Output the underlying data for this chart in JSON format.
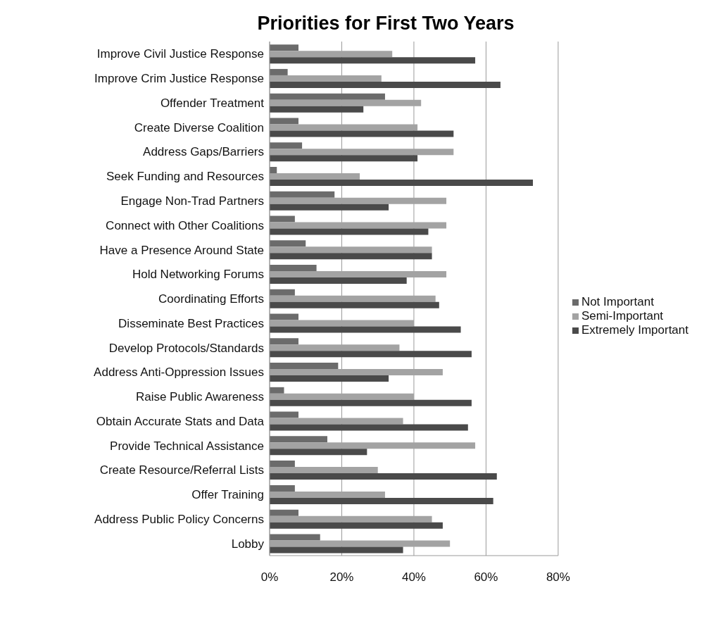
{
  "chart_data": {
    "type": "bar",
    "orientation": "horizontal",
    "title": "Priorities for First Two Years",
    "categories": [
      "Improve Civil Justice Response",
      "Improve Crim Justice Response",
      "Offender Treatment",
      "Create Diverse Coalition",
      "Address Gaps/Barriers",
      "Seek Funding and Resources",
      "Engage Non-Trad Partners",
      "Connect with Other Coalitions",
      "Have a Presence Around State",
      "Hold Networking Forums",
      "Coordinating Efforts",
      "Disseminate Best Practices",
      "Develop Protocols/Standards",
      "Address Anti-Oppression Issues",
      "Raise Public Awareness",
      "Obtain Accurate Stats and Data",
      "Provide Technical Assistance",
      "Create Resource/Referral  Lists",
      "Offer Training",
      "Address Public Policy Concerns",
      "Lobby"
    ],
    "series": [
      {
        "name": "Not Important",
        "color": "#6b6b6b",
        "values": [
          8,
          5,
          32,
          8,
          9,
          2,
          18,
          7,
          10,
          13,
          7,
          8,
          8,
          19,
          4,
          8,
          16,
          7,
          7,
          8,
          14
        ]
      },
      {
        "name": "Semi-Important",
        "color": "#a3a3a3",
        "values": [
          34,
          31,
          42,
          41,
          51,
          25,
          49,
          49,
          45,
          49,
          46,
          40,
          36,
          48,
          40,
          37,
          57,
          30,
          32,
          45,
          50
        ]
      },
      {
        "name": "Extremely Important",
        "color": "#4a4a4a",
        "values": [
          57,
          64,
          26,
          51,
          41,
          73,
          33,
          44,
          45,
          38,
          47,
          53,
          56,
          33,
          56,
          55,
          27,
          63,
          62,
          48,
          37
        ]
      }
    ],
    "xlim": [
      0,
      80
    ],
    "xticks": [
      {
        "value": 0,
        "label": "0%"
      },
      {
        "value": 20,
        "label": "20%"
      },
      {
        "value": 40,
        "label": "40%"
      },
      {
        "value": 60,
        "label": "60%"
      },
      {
        "value": 80,
        "label": "80%"
      }
    ],
    "grid": "x",
    "legend": "right"
  }
}
